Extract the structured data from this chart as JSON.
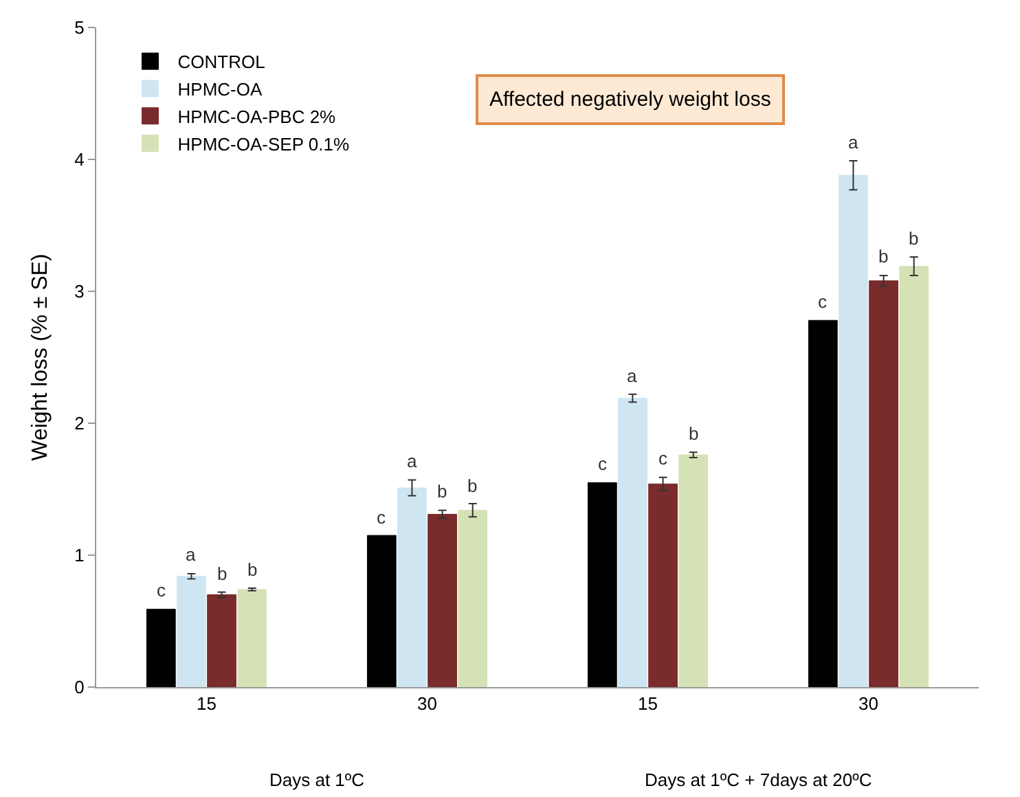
{
  "chart_data": {
    "type": "bar",
    "ylabel": "Weight loss (% ± SE)",
    "categories": [
      "15",
      "30",
      "15",
      "30"
    ],
    "series": [
      {
        "name": "CONTROL",
        "color": "#000000",
        "values": [
          0.59,
          1.15,
          1.55,
          2.78
        ],
        "value_labels": [
          "c",
          "c",
          "c",
          "c"
        ]
      },
      {
        "name": "HPMC-OA",
        "color": "#cfe6f2",
        "values": [
          0.84,
          1.51,
          2.19,
          3.88
        ],
        "errors": [
          0.02,
          0.06,
          0.03,
          0.11
        ],
        "value_labels": [
          "a",
          "a",
          "a",
          "a"
        ]
      },
      {
        "name": "HPMC-OA-PBC 2%",
        "color": "#7a2b2b",
        "values": [
          0.7,
          1.31,
          1.54,
          3.08
        ],
        "errors": [
          0.02,
          0.03,
          0.05,
          0.04
        ],
        "value_labels": [
          "b",
          "b",
          "c",
          "b"
        ]
      },
      {
        "name": "HPMC-OA-SEP 0.1%",
        "color": "#d5e2b6",
        "values": [
          0.74,
          1.34,
          1.76,
          3.19
        ],
        "errors": [
          0.01,
          0.05,
          0.02,
          0.07
        ],
        "value_labels": [
          "b",
          "b",
          "b",
          "b"
        ]
      }
    ],
    "annotations": [
      "Affected negatively weight loss",
      "Days at 1ºC",
      "Days at 1ºC + 7days at 20ºC"
    ],
    "ylim": [
      0,
      5
    ],
    "yticks": [
      0,
      1,
      2,
      3,
      4,
      5
    ],
    "legend": "top left"
  }
}
